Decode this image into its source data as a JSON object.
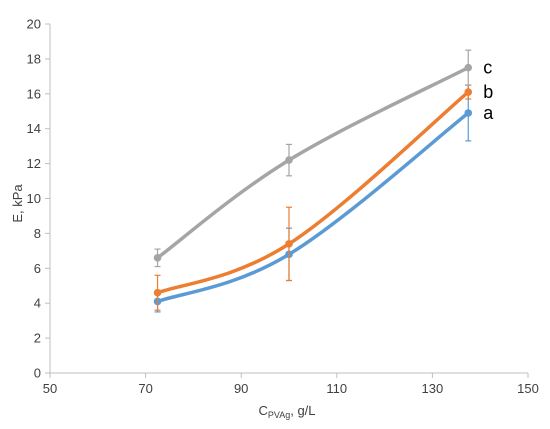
{
  "chart_data": {
    "type": "line",
    "xlabel_main": "C",
    "xlabel_sub": "PVAg",
    "xlabel_rest": ", g/L",
    "ylabel": "E, kPa",
    "xlim": [
      50,
      150
    ],
    "ylim": [
      0,
      20
    ],
    "xticks": [
      50,
      70,
      90,
      110,
      130,
      150
    ],
    "yticks": [
      0,
      2,
      4,
      6,
      8,
      10,
      12,
      14,
      16,
      18,
      20
    ],
    "grid": false,
    "series": [
      {
        "name": "a",
        "color": "#5B9BD5",
        "x": [
          72.5,
          100,
          137.5
        ],
        "y": [
          4.1,
          6.8,
          14.9
        ],
        "err": [
          0.6,
          1.5,
          1.6
        ]
      },
      {
        "name": "b",
        "color": "#ED7D31",
        "x": [
          72.5,
          100,
          137.5
        ],
        "y": [
          4.6,
          7.4,
          16.1
        ],
        "err": [
          1.0,
          2.1,
          0.4
        ]
      },
      {
        "name": "c",
        "color": "#A5A5A5",
        "x": [
          72.5,
          100,
          137.5
        ],
        "y": [
          6.6,
          12.2,
          17.5
        ],
        "err": [
          0.5,
          0.9,
          1.0
        ]
      }
    ]
  }
}
